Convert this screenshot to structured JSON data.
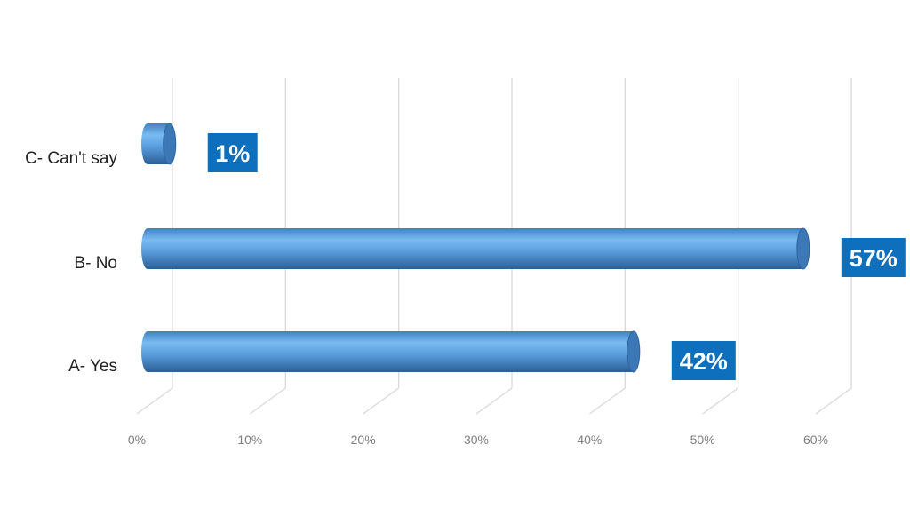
{
  "chart_data": {
    "type": "bar",
    "orientation": "horizontal",
    "style": "3d-cylinder",
    "categories": [
      "A- Yes",
      "B- No",
      "C- Can't say"
    ],
    "values": [
      42,
      57,
      1
    ],
    "data_labels": [
      "42%",
      "57%",
      "1%"
    ],
    "xlim": [
      0,
      60
    ],
    "x_ticks": [
      0,
      10,
      20,
      30,
      40,
      50,
      60
    ],
    "x_tick_labels": [
      "0%",
      "10%",
      "20%",
      "30%",
      "40%",
      "50%",
      "60%"
    ],
    "grid": true,
    "legend": "none",
    "colors": {
      "bar_light": "#74b6ee",
      "bar_mid": "#4f92d6",
      "bar_dark": "#2a5f96",
      "cap": "#3d78b6",
      "label_box": "#0e6fbd",
      "label_text": "#ffffff",
      "grid": "#d9d9d9"
    }
  }
}
